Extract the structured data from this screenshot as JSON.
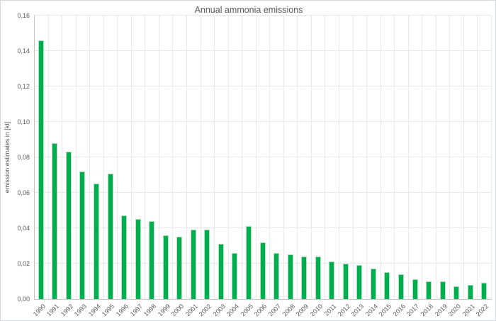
{
  "chart_data": {
    "type": "bar",
    "title": "Annual ammonia emissions",
    "xlabel": "",
    "ylabel": "emission estimates in [kt]",
    "categories": [
      "1990",
      "1991",
      "1992",
      "1993",
      "1994",
      "1995",
      "1996",
      "1997",
      "1998",
      "1999",
      "2000",
      "2001",
      "2002",
      "2003",
      "2004",
      "2005",
      "2006",
      "2007",
      "2008",
      "2009",
      "2010",
      "2011",
      "2012",
      "2013",
      "2014",
      "2015",
      "2016",
      "2017",
      "2018",
      "2019",
      "2020",
      "2021",
      "2022"
    ],
    "values": [
      0.146,
      0.088,
      0.083,
      0.072,
      0.065,
      0.071,
      0.047,
      0.045,
      0.044,
      0.036,
      0.035,
      0.039,
      0.039,
      0.031,
      0.026,
      0.041,
      0.032,
      0.026,
      0.025,
      0.024,
      0.024,
      0.021,
      0.02,
      0.019,
      0.017,
      0.015,
      0.014,
      0.011,
      0.01,
      0.01,
      0.007,
      0.008,
      0.009
    ],
    "ylim": [
      0,
      0.16
    ],
    "ytick_step": 0.02,
    "ytick_labels": [
      "0,00",
      "0,02",
      "0,04",
      "0,06",
      "0,08",
      "0,10",
      "0,12",
      "0,14",
      "0,16"
    ],
    "decimal_separator": ",",
    "grid": "horizontal-and-vertical",
    "legend_position": "none"
  },
  "colors": {
    "bar_fill": "#00ae50",
    "bar_edge": "#aee0c0",
    "gridline": "#e9e9e9",
    "axis_line": "#c3c3c3",
    "text": "#595959",
    "frame_border": "#d3d9e0",
    "background": "#ffffff"
  }
}
